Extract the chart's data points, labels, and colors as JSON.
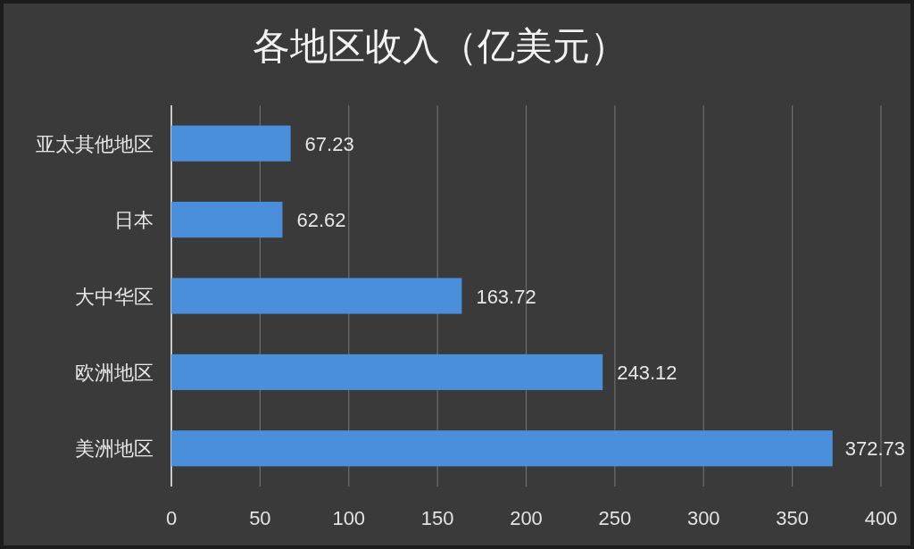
{
  "chart_data": {
    "type": "bar",
    "orientation": "horizontal",
    "title": "各地区收入（亿美元）",
    "categories": [
      "亚太其他地区",
      "日本",
      "大中华区",
      "欧洲地区",
      "美洲地区"
    ],
    "values": [
      67.23,
      62.62,
      163.72,
      243.12,
      372.73
    ],
    "color": "#4a8fdc",
    "xlim": [
      0,
      400
    ],
    "xticks": [
      0,
      50,
      100,
      150,
      200,
      250,
      300,
      350,
      400
    ],
    "grid": "x",
    "data_labels": true
  }
}
